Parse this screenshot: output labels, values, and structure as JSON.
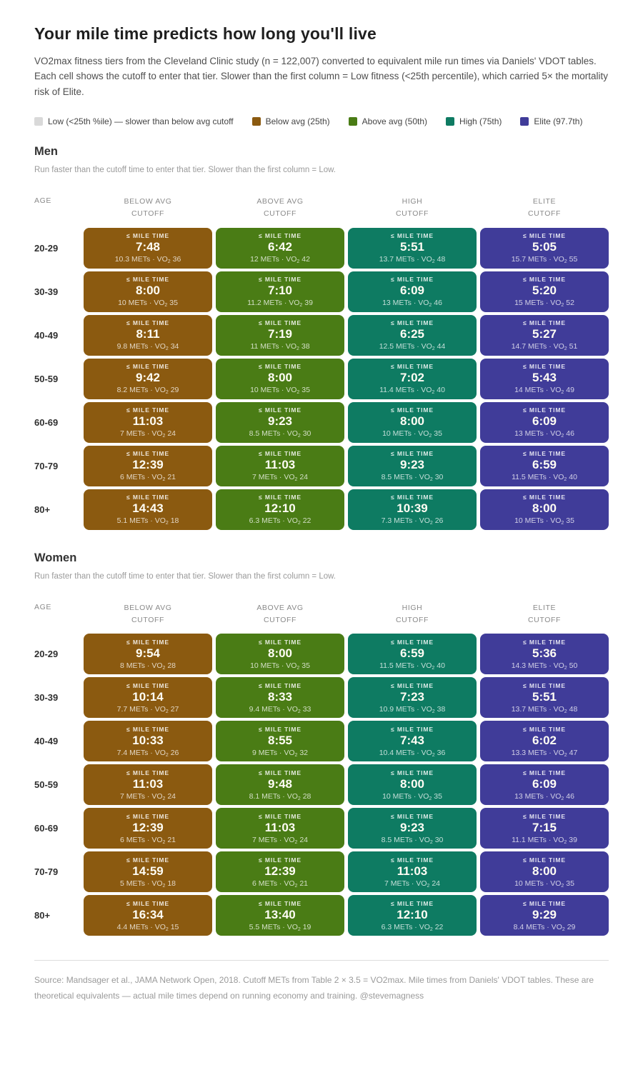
{
  "page": {
    "title": "Your mile time predicts how long you'll live",
    "subtitle": "VO2max fitness tiers from the Cleveland Clinic study (n = 122,007) converted to equivalent mile run times via Daniels' VDOT tables. Each cell shows the cutoff to enter that tier. Slower than the first column = Low fitness (<25th percentile), which carried 5× the mortality risk of Elite.",
    "footer": "Source: Mandsager et al., JAMA Network Open, 2018. Cutoff METs from Table 2 × 3.5 = VO2max. Mile times from Daniels' VDOT tables. These are theoretical equivalents — actual mile times depend on running economy and training. @stevemagness"
  },
  "legend": [
    {
      "label": "Low (<25th %ile) — slower than below avg cutoff",
      "color": "#d9d9d9"
    },
    {
      "label": "Below avg (25th)",
      "color": "#8b5a10"
    },
    {
      "label": "Above avg (50th)",
      "color": "#4a7c15"
    },
    {
      "label": "High (75th)",
      "color": "#0e7b62"
    },
    {
      "label": "Elite (97.7th)",
      "color": "#403c99"
    }
  ],
  "chart_data": {
    "type": "table",
    "title": "Your mile time predicts how long you'll live",
    "cell_label": "≤ MILE TIME",
    "units": {
      "mets": "METs",
      "sep": "·",
      "vo2": "VO",
      "vo2_sub": "2"
    },
    "columns": {
      "age": "AGE",
      "tiers": [
        {
          "label": "BELOW AVG",
          "sub": "CUTOFF",
          "color": "#8b5a10"
        },
        {
          "label": "ABOVE AVG",
          "sub": "CUTOFF",
          "color": "#4a7c15"
        },
        {
          "label": "HIGH",
          "sub": "CUTOFF",
          "color": "#0e7b62"
        },
        {
          "label": "ELITE",
          "sub": "CUTOFF",
          "color": "#403c99"
        }
      ]
    },
    "tables": [
      {
        "name": "Men",
        "note": "Run faster than the cutoff time to enter that tier. Slower than the first column = Low.",
        "rows": [
          {
            "age": "20-29",
            "cells": [
              {
                "time": "7:48",
                "mets": "10.3",
                "vo2": "36"
              },
              {
                "time": "6:42",
                "mets": "12",
                "vo2": "42"
              },
              {
                "time": "5:51",
                "mets": "13.7",
                "vo2": "48"
              },
              {
                "time": "5:05",
                "mets": "15.7",
                "vo2": "55"
              }
            ]
          },
          {
            "age": "30-39",
            "cells": [
              {
                "time": "8:00",
                "mets": "10",
                "vo2": "35"
              },
              {
                "time": "7:10",
                "mets": "11.2",
                "vo2": "39"
              },
              {
                "time": "6:09",
                "mets": "13",
                "vo2": "46"
              },
              {
                "time": "5:20",
                "mets": "15",
                "vo2": "52"
              }
            ]
          },
          {
            "age": "40-49",
            "cells": [
              {
                "time": "8:11",
                "mets": "9.8",
                "vo2": "34"
              },
              {
                "time": "7:19",
                "mets": "11",
                "vo2": "38"
              },
              {
                "time": "6:25",
                "mets": "12.5",
                "vo2": "44"
              },
              {
                "time": "5:27",
                "mets": "14.7",
                "vo2": "51"
              }
            ]
          },
          {
            "age": "50-59",
            "cells": [
              {
                "time": "9:42",
                "mets": "8.2",
                "vo2": "29"
              },
              {
                "time": "8:00",
                "mets": "10",
                "vo2": "35"
              },
              {
                "time": "7:02",
                "mets": "11.4",
                "vo2": "40"
              },
              {
                "time": "5:43",
                "mets": "14",
                "vo2": "49"
              }
            ]
          },
          {
            "age": "60-69",
            "cells": [
              {
                "time": "11:03",
                "mets": "7",
                "vo2": "24"
              },
              {
                "time": "9:23",
                "mets": "8.5",
                "vo2": "30"
              },
              {
                "time": "8:00",
                "mets": "10",
                "vo2": "35"
              },
              {
                "time": "6:09",
                "mets": "13",
                "vo2": "46"
              }
            ]
          },
          {
            "age": "70-79",
            "cells": [
              {
                "time": "12:39",
                "mets": "6",
                "vo2": "21"
              },
              {
                "time": "11:03",
                "mets": "7",
                "vo2": "24"
              },
              {
                "time": "9:23",
                "mets": "8.5",
                "vo2": "30"
              },
              {
                "time": "6:59",
                "mets": "11.5",
                "vo2": "40"
              }
            ]
          },
          {
            "age": "80+",
            "cells": [
              {
                "time": "14:43",
                "mets": "5.1",
                "vo2": "18"
              },
              {
                "time": "12:10",
                "mets": "6.3",
                "vo2": "22"
              },
              {
                "time": "10:39",
                "mets": "7.3",
                "vo2": "26"
              },
              {
                "time": "8:00",
                "mets": "10",
                "vo2": "35"
              }
            ]
          }
        ]
      },
      {
        "name": "Women",
        "note": "Run faster than the cutoff time to enter that tier. Slower than the first column = Low.",
        "rows": [
          {
            "age": "20-29",
            "cells": [
              {
                "time": "9:54",
                "mets": "8",
                "vo2": "28"
              },
              {
                "time": "8:00",
                "mets": "10",
                "vo2": "35"
              },
              {
                "time": "6:59",
                "mets": "11.5",
                "vo2": "40"
              },
              {
                "time": "5:36",
                "mets": "14.3",
                "vo2": "50"
              }
            ]
          },
          {
            "age": "30-39",
            "cells": [
              {
                "time": "10:14",
                "mets": "7.7",
                "vo2": "27"
              },
              {
                "time": "8:33",
                "mets": "9.4",
                "vo2": "33"
              },
              {
                "time": "7:23",
                "mets": "10.9",
                "vo2": "38"
              },
              {
                "time": "5:51",
                "mets": "13.7",
                "vo2": "48"
              }
            ]
          },
          {
            "age": "40-49",
            "cells": [
              {
                "time": "10:33",
                "mets": "7.4",
                "vo2": "26"
              },
              {
                "time": "8:55",
                "mets": "9",
                "vo2": "32"
              },
              {
                "time": "7:43",
                "mets": "10.4",
                "vo2": "36"
              },
              {
                "time": "6:02",
                "mets": "13.3",
                "vo2": "47"
              }
            ]
          },
          {
            "age": "50-59",
            "cells": [
              {
                "time": "11:03",
                "mets": "7",
                "vo2": "24"
              },
              {
                "time": "9:48",
                "mets": "8.1",
                "vo2": "28"
              },
              {
                "time": "8:00",
                "mets": "10",
                "vo2": "35"
              },
              {
                "time": "6:09",
                "mets": "13",
                "vo2": "46"
              }
            ]
          },
          {
            "age": "60-69",
            "cells": [
              {
                "time": "12:39",
                "mets": "6",
                "vo2": "21"
              },
              {
                "time": "11:03",
                "mets": "7",
                "vo2": "24"
              },
              {
                "time": "9:23",
                "mets": "8.5",
                "vo2": "30"
              },
              {
                "time": "7:15",
                "mets": "11.1",
                "vo2": "39"
              }
            ]
          },
          {
            "age": "70-79",
            "cells": [
              {
                "time": "14:59",
                "mets": "5",
                "vo2": "18"
              },
              {
                "time": "12:39",
                "mets": "6",
                "vo2": "21"
              },
              {
                "time": "11:03",
                "mets": "7",
                "vo2": "24"
              },
              {
                "time": "8:00",
                "mets": "10",
                "vo2": "35"
              }
            ]
          },
          {
            "age": "80+",
            "cells": [
              {
                "time": "16:34",
                "mets": "4.4",
                "vo2": "15"
              },
              {
                "time": "13:40",
                "mets": "5.5",
                "vo2": "19"
              },
              {
                "time": "12:10",
                "mets": "6.3",
                "vo2": "22"
              },
              {
                "time": "9:29",
                "mets": "8.4",
                "vo2": "29"
              }
            ]
          }
        ]
      }
    ]
  }
}
